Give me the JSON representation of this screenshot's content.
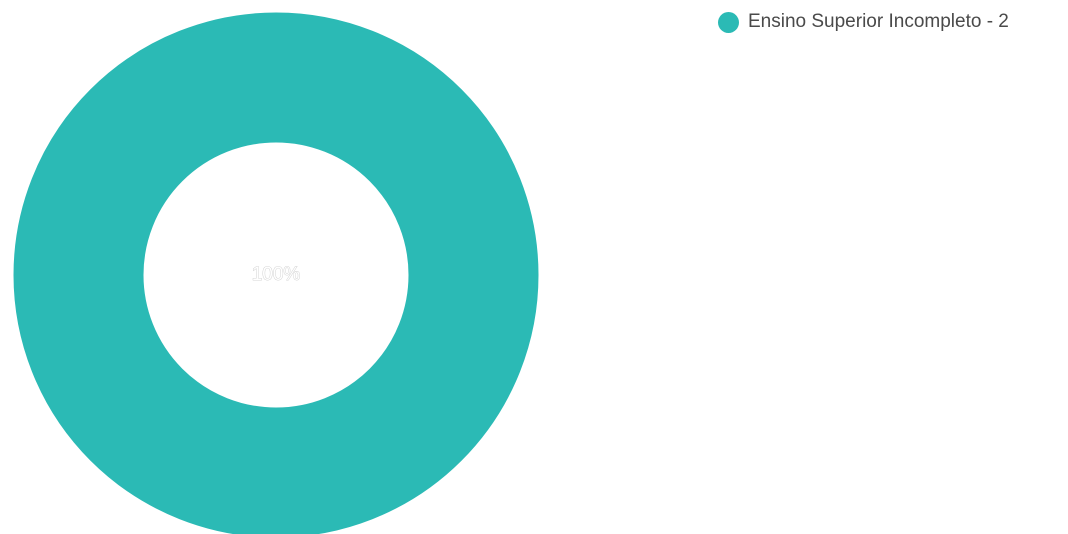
{
  "chart_data": {
    "type": "pie",
    "variant": "donut",
    "title": "",
    "slices": [
      {
        "label": "Ensino Superior Incompleto",
        "value": 2,
        "percent": 100,
        "color": "#2bbab5"
      }
    ],
    "center_label": "100%",
    "legend": {
      "placement": "top-right",
      "entries": [
        "Ensino Superior Incompleto - 2"
      ]
    }
  }
}
